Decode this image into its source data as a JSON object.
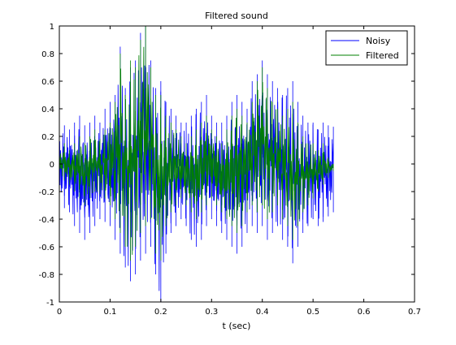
{
  "chart_data": {
    "type": "line",
    "title": "Filtered sound",
    "xlabel": "t (sec)",
    "ylabel": "",
    "xlim": [
      0,
      0.7
    ],
    "ylim": [
      -1,
      1
    ],
    "xticks": [
      0,
      0.1,
      0.2,
      0.3,
      0.4,
      0.5,
      0.6,
      0.7
    ],
    "yticks": [
      -1,
      -0.8,
      -0.6,
      -0.4,
      -0.2,
      0,
      0.2,
      0.4,
      0.6,
      0.8,
      1
    ],
    "xtick_labels": [
      "0",
      "0.1",
      "0.2",
      "0.3",
      "0.4",
      "0.5",
      "0.6",
      "0.7"
    ],
    "ytick_labels": [
      "-1",
      "-0.8",
      "-0.6",
      "-0.4",
      "-0.2",
      "0",
      "0.2",
      "0.4",
      "0.6",
      "0.8",
      "1"
    ],
    "grid": false,
    "legend_position": "top-right",
    "series": [
      {
        "name": "Noisy",
        "color": "#0000ff",
        "x": [
          0,
          0.01,
          0.02,
          0.03,
          0.04,
          0.05,
          0.06,
          0.07,
          0.08,
          0.09,
          0.1,
          0.11,
          0.12,
          0.13,
          0.14,
          0.15,
          0.16,
          0.17,
          0.18,
          0.19,
          0.2,
          0.21,
          0.22,
          0.23,
          0.24,
          0.25,
          0.26,
          0.27,
          0.28,
          0.29,
          0.3,
          0.31,
          0.32,
          0.33,
          0.34,
          0.35,
          0.36,
          0.37,
          0.38,
          0.39,
          0.4,
          0.41,
          0.42,
          0.43,
          0.44,
          0.45,
          0.46,
          0.47,
          0.48,
          0.49,
          0.5,
          0.51,
          0.52,
          0.53,
          0.54
        ],
        "upper": [
          0.3,
          0.28,
          0.25,
          0.3,
          0.35,
          0.28,
          0.3,
          0.35,
          0.3,
          0.4,
          0.45,
          0.5,
          0.85,
          0.55,
          0.7,
          0.75,
          0.95,
          1.0,
          0.75,
          0.55,
          0.6,
          0.45,
          0.4,
          0.35,
          0.3,
          0.3,
          0.35,
          0.4,
          0.45,
          0.5,
          0.35,
          0.3,
          0.3,
          0.35,
          0.45,
          0.5,
          0.45,
          0.4,
          0.6,
          0.65,
          0.75,
          0.65,
          0.6,
          0.55,
          0.5,
          0.55,
          0.6,
          0.45,
          0.35,
          0.3,
          0.3,
          0.25,
          0.3,
          0.28,
          0.27
        ],
        "lower": [
          -0.3,
          -0.32,
          -0.35,
          -0.45,
          -0.5,
          -0.55,
          -0.5,
          -0.45,
          -0.4,
          -0.42,
          -0.45,
          -0.55,
          -0.65,
          -0.75,
          -0.85,
          -0.8,
          -0.7,
          -0.65,
          -0.6,
          -0.8,
          -1.0,
          -0.65,
          -0.5,
          -0.45,
          -0.4,
          -0.45,
          -0.55,
          -0.6,
          -0.55,
          -0.45,
          -0.4,
          -0.45,
          -0.5,
          -0.55,
          -0.6,
          -0.65,
          -0.6,
          -0.5,
          -0.45,
          -0.5,
          -0.45,
          -0.55,
          -0.5,
          -0.45,
          -0.55,
          -0.6,
          -0.72,
          -0.6,
          -0.5,
          -0.45,
          -0.4,
          -0.45,
          -0.42,
          -0.38,
          -0.35
        ]
      },
      {
        "name": "Filtered",
        "color": "#008000",
        "x": [
          0,
          0.01,
          0.02,
          0.03,
          0.04,
          0.05,
          0.06,
          0.07,
          0.08,
          0.09,
          0.1,
          0.11,
          0.12,
          0.13,
          0.14,
          0.15,
          0.16,
          0.17,
          0.18,
          0.19,
          0.2,
          0.21,
          0.22,
          0.23,
          0.24,
          0.25,
          0.26,
          0.27,
          0.28,
          0.29,
          0.3,
          0.31,
          0.32,
          0.33,
          0.34,
          0.35,
          0.36,
          0.37,
          0.38,
          0.39,
          0.4,
          0.41,
          0.42,
          0.43,
          0.44,
          0.45,
          0.46,
          0.47,
          0.48,
          0.49,
          0.5,
          0.51,
          0.52,
          0.53,
          0.54
        ],
        "upper": [
          0.12,
          0.15,
          0.1,
          0.15,
          0.2,
          0.15,
          0.2,
          0.25,
          0.18,
          0.25,
          0.3,
          0.45,
          0.8,
          0.5,
          0.75,
          0.7,
          0.9,
          1.0,
          0.7,
          0.5,
          0.5,
          0.35,
          0.3,
          0.25,
          0.2,
          0.15,
          0.2,
          0.25,
          0.3,
          0.35,
          0.25,
          0.2,
          0.15,
          0.25,
          0.35,
          0.4,
          0.35,
          0.3,
          0.45,
          0.6,
          0.7,
          0.55,
          0.45,
          0.4,
          0.35,
          0.4,
          0.45,
          0.3,
          0.2,
          0.15,
          0.15,
          0.1,
          0.15,
          0.05,
          0.0
        ],
        "lower": [
          -0.1,
          -0.12,
          -0.15,
          -0.2,
          -0.25,
          -0.3,
          -0.25,
          -0.2,
          -0.22,
          -0.25,
          -0.3,
          -0.4,
          -0.5,
          -0.6,
          -0.7,
          -0.6,
          -0.5,
          -0.45,
          -0.4,
          -0.65,
          -0.7,
          -0.45,
          -0.35,
          -0.3,
          -0.25,
          -0.3,
          -0.35,
          -0.4,
          -0.35,
          -0.3,
          -0.25,
          -0.3,
          -0.35,
          -0.4,
          -0.45,
          -0.5,
          -0.45,
          -0.35,
          -0.3,
          -0.35,
          -0.3,
          -0.4,
          -0.35,
          -0.3,
          -0.4,
          -0.45,
          -0.55,
          -0.45,
          -0.35,
          -0.3,
          -0.25,
          -0.2,
          -0.15,
          -0.1,
          -0.05
        ]
      }
    ]
  }
}
